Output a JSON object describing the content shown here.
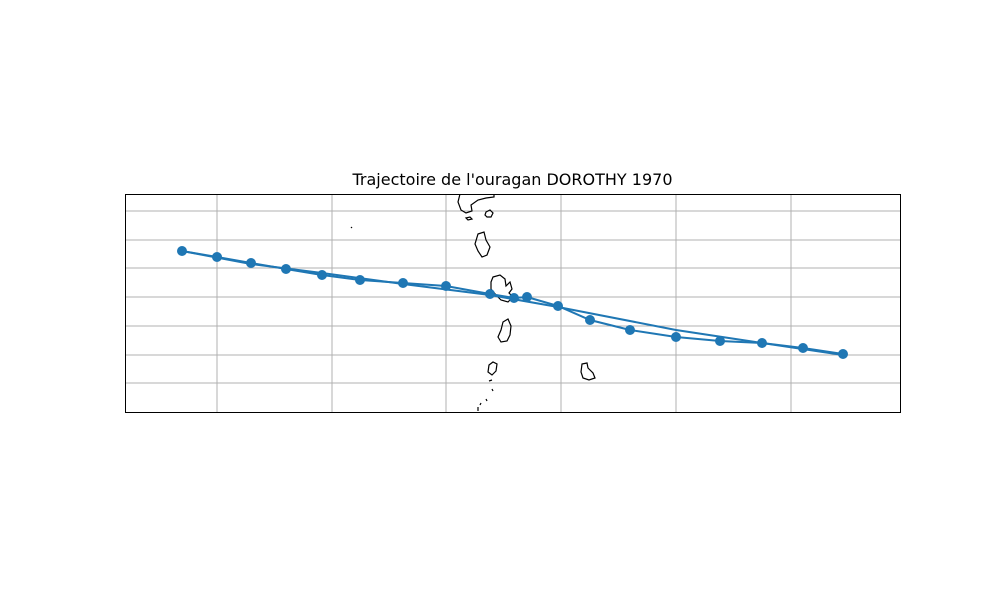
{
  "map": {
    "title": "Trajectoire de l'ouragan DOROTHY 1970",
    "gridlines": true,
    "track_color": "#1f77b4",
    "coast_color": "#000000",
    "grid_color": "#b0b0b0"
  }
}
